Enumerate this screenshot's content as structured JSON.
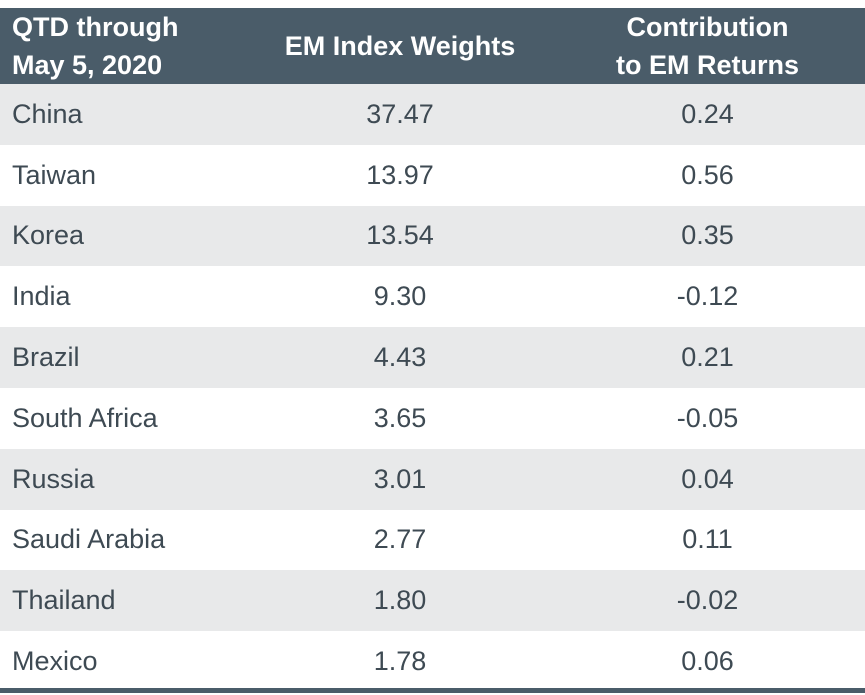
{
  "chart_data": {
    "type": "table",
    "columns": [
      [
        "QTD through",
        "May 5, 2020"
      ],
      [
        "EM Index Weights"
      ],
      [
        "Contribution",
        "to EM Returns"
      ]
    ],
    "rows": [
      {
        "country": "China",
        "weight": "37.47",
        "contribution": "0.24"
      },
      {
        "country": "Taiwan",
        "weight": "13.97",
        "contribution": "0.56"
      },
      {
        "country": "Korea",
        "weight": "13.54",
        "contribution": "0.35"
      },
      {
        "country": "India",
        "weight": "9.30",
        "contribution": "-0.12"
      },
      {
        "country": "Brazil",
        "weight": "4.43",
        "contribution": "0.21"
      },
      {
        "country": "South Africa",
        "weight": "3.65",
        "contribution": "-0.05"
      },
      {
        "country": "Russia",
        "weight": "3.01",
        "contribution": "0.04"
      },
      {
        "country": "Saudi Arabia",
        "weight": "2.77",
        "contribution": "0.11"
      },
      {
        "country": "Thailand",
        "weight": "1.80",
        "contribution": "-0.02"
      },
      {
        "country": "Mexico",
        "weight": "1.78",
        "contribution": "0.06"
      }
    ]
  },
  "colors": {
    "header_bg": "#4a5c69",
    "header_text": "#ffffff",
    "row_shaded": "#e8e9ea",
    "row_plain": "#ffffff",
    "body_text": "#3e4a53"
  }
}
